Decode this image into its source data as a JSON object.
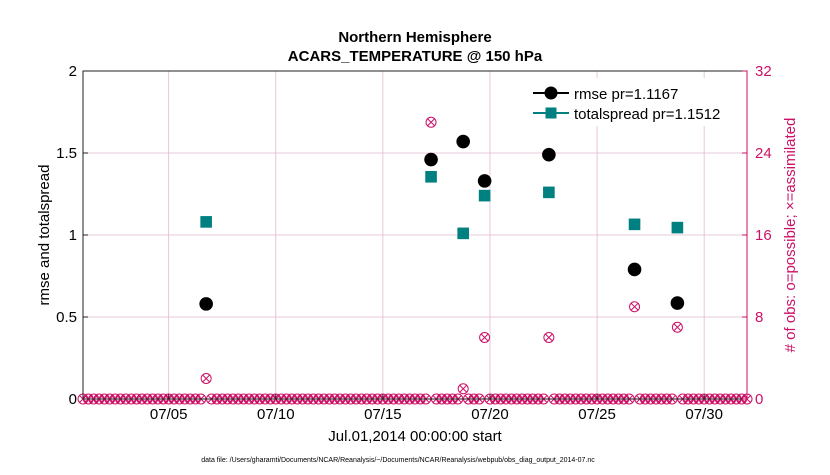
{
  "chart_data": {
    "type": "scatter",
    "title_line1": "Northern Hemisphere",
    "title_line2": "ACARS_TEMPERATURE @ 150 hPa",
    "xlabel": "Jul.01,2014 00:00:00 start",
    "ylabel_left": "rmse and totalspread",
    "ylabel_right": "# of obs: o=possible; ×=assimilated",
    "footnote": "data file: /Users/gharamti/Documents/NCAR/Reanalysis/~/Documents/NCAR/Reanalysis/webpub/obs_diag_output_2014-07.nc",
    "xlim": [
      1.0,
      32.0
    ],
    "ylim_left": [
      0,
      2
    ],
    "ylim_right": [
      0,
      32
    ],
    "x_ticks": [
      {
        "value": 5,
        "label": "07/05"
      },
      {
        "value": 10,
        "label": "07/10"
      },
      {
        "value": 15,
        "label": "07/15"
      },
      {
        "value": 20,
        "label": "07/20"
      },
      {
        "value": 25,
        "label": "07/25"
      },
      {
        "value": 30,
        "label": "07/30"
      }
    ],
    "y_ticks_left": [
      {
        "value": 0,
        "label": "0"
      },
      {
        "value": 0.5,
        "label": "0.5"
      },
      {
        "value": 1,
        "label": "1"
      },
      {
        "value": 1.5,
        "label": "1.5"
      },
      {
        "value": 2,
        "label": "2"
      }
    ],
    "y_ticks_right": [
      {
        "value": 0,
        "label": "0"
      },
      {
        "value": 8,
        "label": "8"
      },
      {
        "value": 16,
        "label": "16"
      },
      {
        "value": 24,
        "label": "24"
      },
      {
        "value": 32,
        "label": "32"
      }
    ],
    "colors": {
      "rmse": "#000000",
      "totalspread": "#008080",
      "obs": "#cc1166",
      "grid": "#e3b8d0"
    },
    "series": [
      {
        "name": "rmse pr=1.1167",
        "key": "rmse",
        "x": [
          6.75,
          17.25,
          18.75,
          19.75,
          22.75,
          26.75,
          28.75
        ],
        "values": [
          0.58,
          1.46,
          1.57,
          1.33,
          1.49,
          0.79,
          0.585
        ]
      },
      {
        "name": "totalspread pr=1.1512",
        "key": "totalspread",
        "x": [
          6.75,
          17.25,
          18.75,
          19.75,
          22.75,
          26.75,
          28.75
        ],
        "values": [
          1.08,
          1.355,
          1.01,
          1.24,
          1.26,
          1.065,
          1.045
        ]
      }
    ],
    "obs_possible": {
      "x": [
        6.75,
        17.25,
        18.75,
        19.75,
        22.75,
        26.75,
        28.75
      ],
      "values": [
        2,
        27,
        1,
        6,
        6,
        9,
        7
      ]
    },
    "obs_assimilated": {
      "x": [
        6.75,
        17.25,
        18.75,
        19.75,
        22.75,
        26.75,
        28.75
      ],
      "values": [
        2,
        27,
        1,
        6,
        6,
        9,
        7
      ]
    },
    "obs_zero_start": 1.0,
    "obs_zero_step": 0.25,
    "obs_zero_end": 32.0
  }
}
